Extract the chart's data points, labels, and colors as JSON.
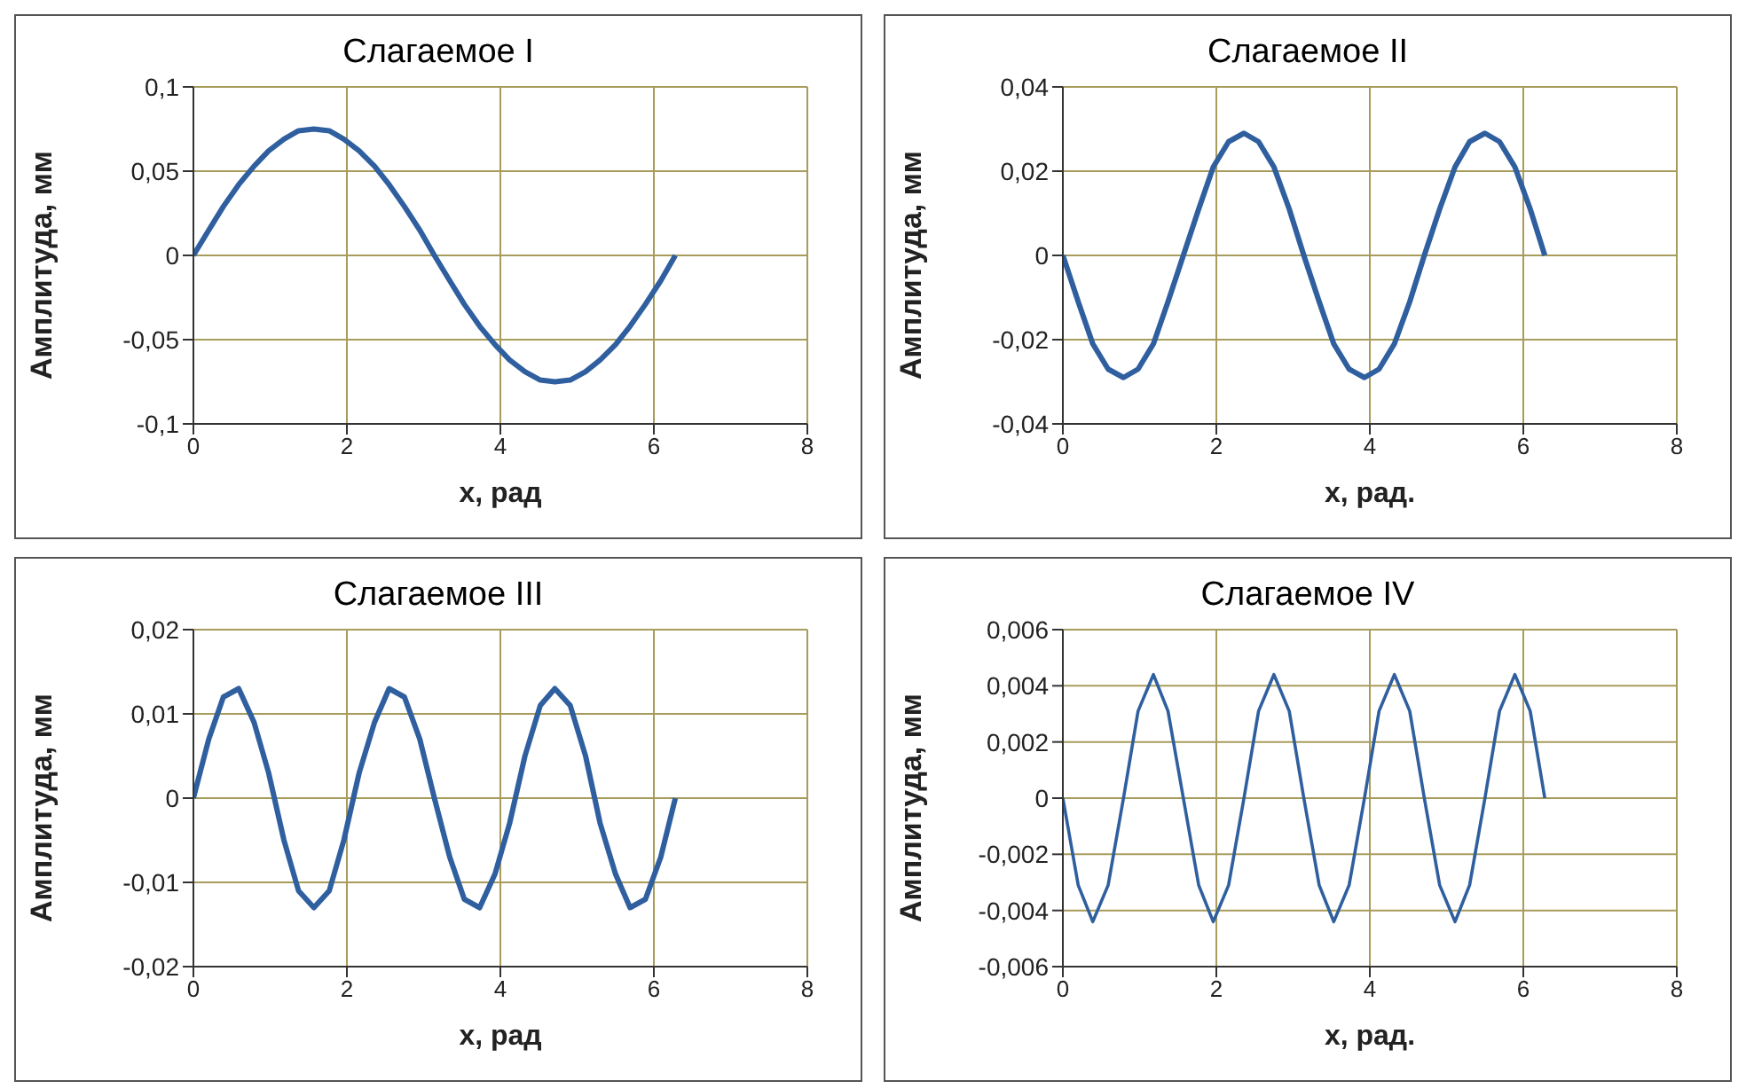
{
  "chart_data": [
    {
      "type": "line",
      "title": "Слагаемое I",
      "xlabel": "x, рад",
      "ylabel": "Амплитуда, мм",
      "xlim": [
        0,
        8
      ],
      "xticks": [
        0,
        2,
        4,
        6,
        8
      ],
      "ylim": [
        -0.1,
        0.1
      ],
      "yticks": [
        {
          "value": -0.1,
          "label": "-0,1"
        },
        {
          "value": -0.05,
          "label": "-0,05"
        },
        {
          "value": 0,
          "label": "0"
        },
        {
          "value": 0.05,
          "label": "0,05"
        },
        {
          "value": 0.1,
          "label": "0,1"
        }
      ],
      "grid": true,
      "marker": "none",
      "line_style": "solid",
      "x": [
        0,
        0.2,
        0.39,
        0.59,
        0.79,
        0.98,
        1.18,
        1.37,
        1.57,
        1.77,
        1.96,
        2.16,
        2.36,
        2.55,
        2.75,
        2.95,
        3.14,
        3.34,
        3.53,
        3.73,
        3.93,
        4.12,
        4.32,
        4.52,
        4.71,
        4.91,
        5.11,
        5.3,
        5.5,
        5.69,
        5.89,
        6.09,
        6.28
      ],
      "series": [
        {
          "color": "#2f5f9f",
          "values": [
            0,
            0.015,
            0.029,
            0.042,
            0.053,
            0.062,
            0.069,
            0.074,
            0.075,
            0.074,
            0.069,
            0.062,
            0.053,
            0.042,
            0.029,
            0.015,
            0,
            -0.015,
            -0.029,
            -0.042,
            -0.053,
            -0.062,
            -0.069,
            -0.074,
            -0.075,
            -0.074,
            -0.069,
            -0.062,
            -0.053,
            -0.042,
            -0.029,
            -0.015,
            0
          ]
        }
      ]
    },
    {
      "type": "line",
      "title": "Слагаемое II",
      "xlabel": "x, рад.",
      "ylabel": "Амплитуда, мм",
      "xlim": [
        0,
        8
      ],
      "xticks": [
        0,
        2,
        4,
        6,
        8
      ],
      "ylim": [
        -0.04,
        0.04
      ],
      "yticks": [
        {
          "value": -0.04,
          "label": "-0,04"
        },
        {
          "value": -0.02,
          "label": "-0,02"
        },
        {
          "value": 0,
          "label": "0"
        },
        {
          "value": 0.02,
          "label": "0,02"
        },
        {
          "value": 0.04,
          "label": "0,04"
        }
      ],
      "grid": true,
      "marker": "none",
      "line_style": "solid",
      "x": [
        0,
        0.2,
        0.39,
        0.59,
        0.79,
        0.98,
        1.18,
        1.37,
        1.57,
        1.77,
        1.96,
        2.16,
        2.36,
        2.55,
        2.75,
        2.95,
        3.14,
        3.34,
        3.53,
        3.73,
        3.93,
        4.12,
        4.32,
        4.52,
        4.71,
        4.91,
        5.11,
        5.3,
        5.5,
        5.69,
        5.89,
        6.09,
        6.28
      ],
      "series": [
        {
          "color": "#2f5f9f",
          "values": [
            0,
            -0.011,
            -0.021,
            -0.027,
            -0.029,
            -0.027,
            -0.021,
            -0.011,
            0,
            0.011,
            0.021,
            0.027,
            0.029,
            0.027,
            0.021,
            0.011,
            0,
            -0.011,
            -0.021,
            -0.027,
            -0.029,
            -0.027,
            -0.021,
            -0.011,
            0,
            0.011,
            0.021,
            0.027,
            0.029,
            0.027,
            0.021,
            0.011,
            0
          ]
        }
      ]
    },
    {
      "type": "line",
      "title": "Слагаемое III",
      "xlabel": "x, рад",
      "ylabel": "Амплитуда, мм",
      "xlim": [
        0,
        8
      ],
      "xticks": [
        0,
        2,
        4,
        6,
        8
      ],
      "ylim": [
        -0.02,
        0.02
      ],
      "yticks": [
        {
          "value": -0.02,
          "label": "-0,02"
        },
        {
          "value": -0.01,
          "label": "-0,01"
        },
        {
          "value": 0,
          "label": "0"
        },
        {
          "value": 0.01,
          "label": "0,01"
        },
        {
          "value": 0.02,
          "label": "0,02"
        }
      ],
      "grid": true,
      "marker": "none",
      "line_style": "solid",
      "x": [
        0,
        0.2,
        0.39,
        0.59,
        0.79,
        0.98,
        1.18,
        1.37,
        1.57,
        1.77,
        1.96,
        2.16,
        2.36,
        2.55,
        2.75,
        2.95,
        3.14,
        3.34,
        3.53,
        3.73,
        3.93,
        4.12,
        4.32,
        4.52,
        4.71,
        4.91,
        5.11,
        5.3,
        5.5,
        5.69,
        5.89,
        6.09,
        6.28
      ],
      "series": [
        {
          "color": "#2f5f9f",
          "values": [
            0,
            0.007,
            0.012,
            0.013,
            0.009,
            0.003,
            -0.005,
            -0.011,
            -0.013,
            -0.011,
            -0.005,
            0.003,
            0.009,
            0.013,
            0.012,
            0.007,
            0,
            -0.007,
            -0.012,
            -0.013,
            -0.009,
            -0.003,
            0.005,
            0.011,
            0.013,
            0.011,
            0.005,
            -0.003,
            -0.009,
            -0.013,
            -0.012,
            -0.007,
            0
          ]
        }
      ]
    },
    {
      "type": "line",
      "title": "Слагаемое IV",
      "xlabel": "x, рад.",
      "ylabel": "Амплитуда, мм",
      "xlim": [
        0,
        8
      ],
      "xticks": [
        0,
        2,
        4,
        6,
        8
      ],
      "ylim": [
        -0.006,
        0.006
      ],
      "yticks": [
        {
          "value": -0.006,
          "label": "-0,006"
        },
        {
          "value": -0.004,
          "label": "-0,004"
        },
        {
          "value": -0.002,
          "label": "-0,002"
        },
        {
          "value": 0,
          "label": "0"
        },
        {
          "value": 0.002,
          "label": "0,002"
        },
        {
          "value": 0.004,
          "label": "0,004"
        },
        {
          "value": 0.006,
          "label": "0,006"
        }
      ],
      "grid": true,
      "marker": "none",
      "line_style": "solid",
      "x": [
        0,
        0.2,
        0.39,
        0.59,
        0.79,
        0.98,
        1.18,
        1.37,
        1.57,
        1.77,
        1.96,
        2.16,
        2.36,
        2.55,
        2.75,
        2.95,
        3.14,
        3.34,
        3.53,
        3.73,
        3.93,
        4.12,
        4.32,
        4.52,
        4.71,
        4.91,
        5.11,
        5.3,
        5.5,
        5.69,
        5.89,
        6.09,
        6.28
      ],
      "series": [
        {
          "color": "#2f5f9f",
          "values": [
            0,
            -0.0031,
            -0.0044,
            -0.0031,
            0,
            0.0031,
            0.0044,
            0.0031,
            0,
            -0.0031,
            -0.0044,
            -0.0031,
            0,
            0.0031,
            0.0044,
            0.0031,
            0,
            -0.0031,
            -0.0044,
            -0.0031,
            0,
            0.0031,
            0.0044,
            0.0031,
            0,
            -0.0031,
            -0.0044,
            -0.0031,
            0,
            0.0031,
            0.0044,
            0.0031,
            0
          ]
        }
      ]
    }
  ]
}
